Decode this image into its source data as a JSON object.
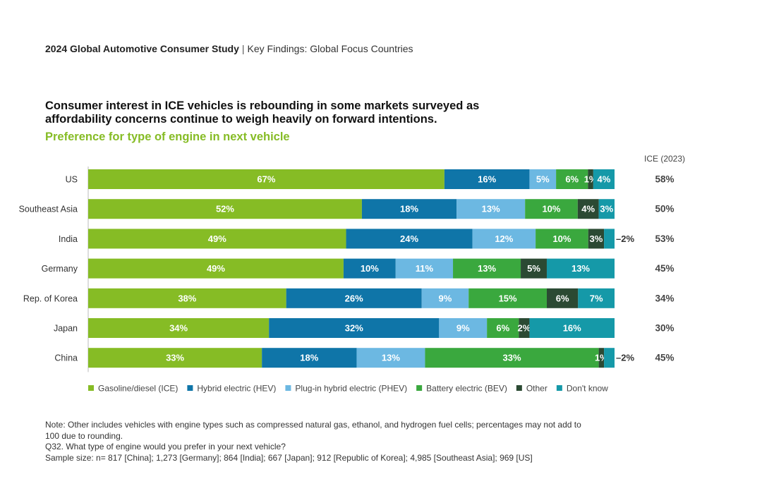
{
  "header": {
    "study": "2024 Global Automotive Consumer Study",
    "separator": "|",
    "section": "Key Findings: Global Focus Countries"
  },
  "headline": "Consumer interest in ICE vehicles is rebounding in some markets surveyed as affordability concerns continue to weigh heavily on forward intentions.",
  "subtitle": "Preference for type of engine in next vehicle",
  "colors": {
    "ice": "#86bc25",
    "hev": "#0f75a8",
    "phev": "#6cb8e2",
    "bev": "#3aa83e",
    "other": "#2b4a33",
    "dont_know": "#1599a8",
    "subtitle": "#86bc25"
  },
  "chart_data": {
    "type": "bar",
    "orientation": "horizontal",
    "stacked": true,
    "categories": [
      "US",
      "Southeast Asia",
      "India",
      "Germany",
      "Rep. of Korea",
      "Japan",
      "China"
    ],
    "series": [
      {
        "name": "Gasoline/diesel (ICE)",
        "color": "#86bc25",
        "values": [
          67,
          52,
          49,
          49,
          38,
          34,
          33
        ],
        "labels": [
          "67%",
          "52%",
          "49%",
          "49%",
          "38%",
          "34%",
          "33%"
        ]
      },
      {
        "name": "Hybrid electric (HEV)",
        "color": "#0f75a8",
        "values": [
          16,
          18,
          24,
          10,
          26,
          32,
          18
        ],
        "labels": [
          "16%",
          "18%",
          "24%",
          "10%",
          "26%",
          "32%",
          "18%"
        ]
      },
      {
        "name": "Plug-in hybrid electric (PHEV)",
        "color": "#6cb8e2",
        "values": [
          5,
          13,
          12,
          11,
          9,
          9,
          13
        ],
        "labels": [
          "5%",
          "13%",
          "12%",
          "11%",
          "9%",
          "9%",
          "13%"
        ]
      },
      {
        "name": "Battery electric (BEV)",
        "color": "#3aa83e",
        "values": [
          6,
          10,
          10,
          13,
          15,
          6,
          33
        ],
        "labels": [
          "6%",
          "10%",
          "10%",
          "13%",
          "15%",
          "6%",
          "33%"
        ]
      },
      {
        "name": "Other",
        "color": "#2b4a33",
        "values": [
          1,
          4,
          3,
          5,
          6,
          2,
          1
        ],
        "labels": [
          "1%",
          "4%",
          "3%",
          "5%",
          "6%",
          "2%",
          "1%"
        ]
      },
      {
        "name": "Don't know",
        "color": "#1599a8",
        "values": [
          4,
          3,
          2,
          13,
          7,
          16,
          2
        ],
        "labels": [
          "4%",
          "3%",
          "–2%",
          "13%",
          "7%",
          "16%",
          "–2%"
        ]
      }
    ],
    "side_column": {
      "title": "ICE (2023)",
      "values": [
        "58%",
        "50%",
        "53%",
        "45%",
        "34%",
        "30%",
        "45%"
      ]
    },
    "legend": [
      "Gasoline/diesel (ICE)",
      "Hybrid electric (HEV)",
      "Plug-in hybrid electric (PHEV)",
      "Battery electric (BEV)",
      "Other",
      "Don't know"
    ],
    "legend_position": "bottom",
    "grid": false
  },
  "notes": {
    "note": "Note: Other includes vehicles with engine types such as compressed natural gas, ethanol, and hydrogen fuel cells; percentages may not add to 100 due to rounding.",
    "question": "Q32. What type of engine would you prefer in your next vehicle?",
    "sample": "Sample size: n= 817 [China]; 1,273 [Germany]; 864 [India]; 667 [Japan]; 912 [Republic of Korea]; 4,985 [Southeast Asia]; 969 [US]"
  }
}
